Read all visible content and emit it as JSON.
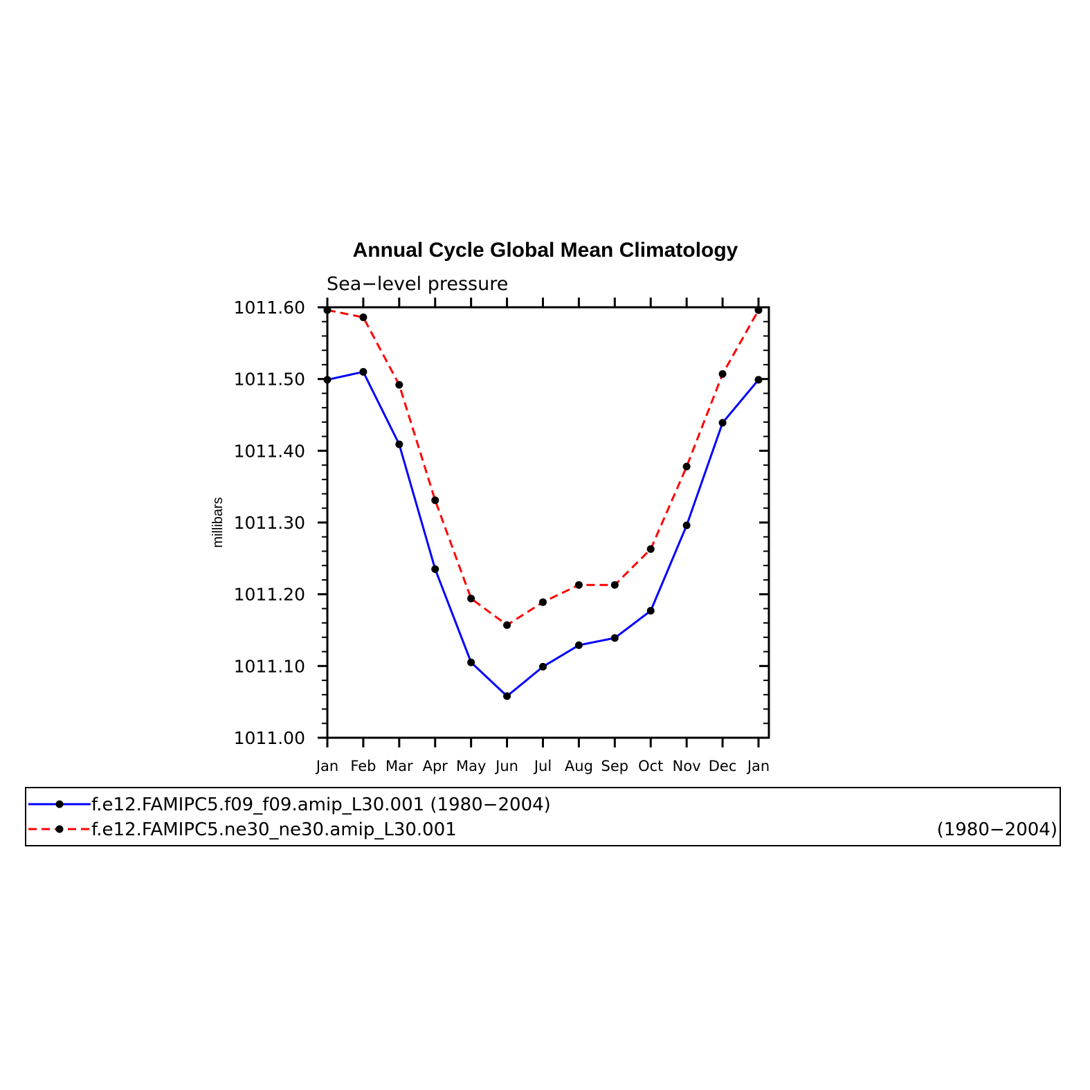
{
  "chart_data": {
    "type": "line",
    "title": "Annual Cycle Global Mean Climatology",
    "subtitle": "Sea−level pressure",
    "xlabel": "",
    "ylabel": "millibars",
    "categories": [
      "Jan",
      "Feb",
      "Mar",
      "Apr",
      "May",
      "Jun",
      "Jul",
      "Aug",
      "Sep",
      "Oct",
      "Nov",
      "Dec",
      "Jan"
    ],
    "ylim": [
      1011.0,
      1011.6
    ],
    "yticks": [
      "1011.00",
      "1011.10",
      "1011.20",
      "1011.30",
      "1011.40",
      "1011.50",
      "1011.60"
    ],
    "grid": false,
    "legend_position": "bottom",
    "series": [
      {
        "name": "f.e12.FAMIPC5.f09_f09.amip_L30.001 (1980−2004)",
        "legend_name": "f.e12.FAMIPC5.f09_f09.amip_L30.001 (1980−2004)",
        "legend_period": "",
        "color": "#0000ff",
        "dash": "solid",
        "values": [
          1011.499,
          1011.51,
          1011.409,
          1011.235,
          1011.105,
          1011.058,
          1011.099,
          1011.129,
          1011.139,
          1011.177,
          1011.296,
          1011.439,
          1011.499
        ]
      },
      {
        "name": "f.e12.FAMIPC5.ne30_ne30.amip_L30.001 (1980−2004)",
        "legend_name": "f.e12.FAMIPC5.ne30_ne30.amip_L30.001",
        "legend_period": "(1980−2004)",
        "color": "#ff0000",
        "dash": "dashed",
        "values": [
          1011.596,
          1011.586,
          1011.492,
          1011.331,
          1011.194,
          1011.157,
          1011.189,
          1011.213,
          1011.213,
          1011.263,
          1011.378,
          1011.507,
          1011.596
        ]
      }
    ],
    "marker_color": "#000000"
  }
}
